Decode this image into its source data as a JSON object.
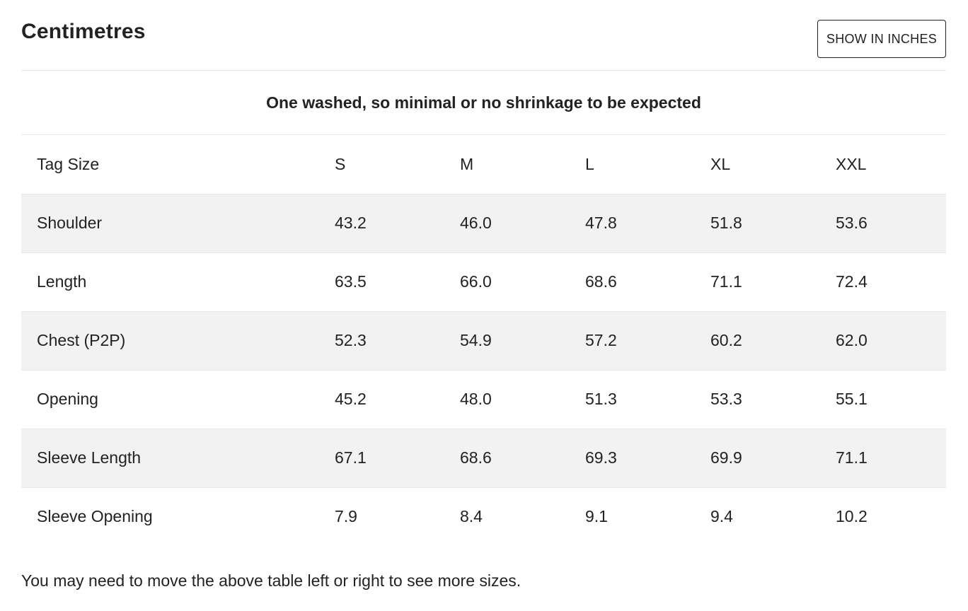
{
  "header": {
    "title": "Centimetres",
    "toggle_label": "SHOW IN INCHES"
  },
  "note": "One washed, so minimal or no shrinkage to be expected",
  "table": {
    "columns": [
      "Tag Size",
      "S",
      "M",
      "L",
      "XL",
      "XXL"
    ],
    "rows": [
      [
        "Shoulder",
        "43.2",
        "46.0",
        "47.8",
        "51.8",
        "53.6"
      ],
      [
        "Length",
        "63.5",
        "66.0",
        "68.6",
        "71.1",
        "72.4"
      ],
      [
        "Chest (P2P)",
        "52.3",
        "54.9",
        "57.2",
        "60.2",
        "62.0"
      ],
      [
        "Opening",
        "45.2",
        "48.0",
        "51.3",
        "53.3",
        "55.1"
      ],
      [
        "Sleeve Length",
        "67.1",
        "68.6",
        "69.3",
        "69.9",
        "71.1"
      ],
      [
        "Sleeve Opening",
        "7.9",
        "8.4",
        "9.1",
        "9.4",
        "10.2"
      ]
    ]
  },
  "footer": {
    "hint": "You may need to move the above table left or right to see more sizes."
  }
}
